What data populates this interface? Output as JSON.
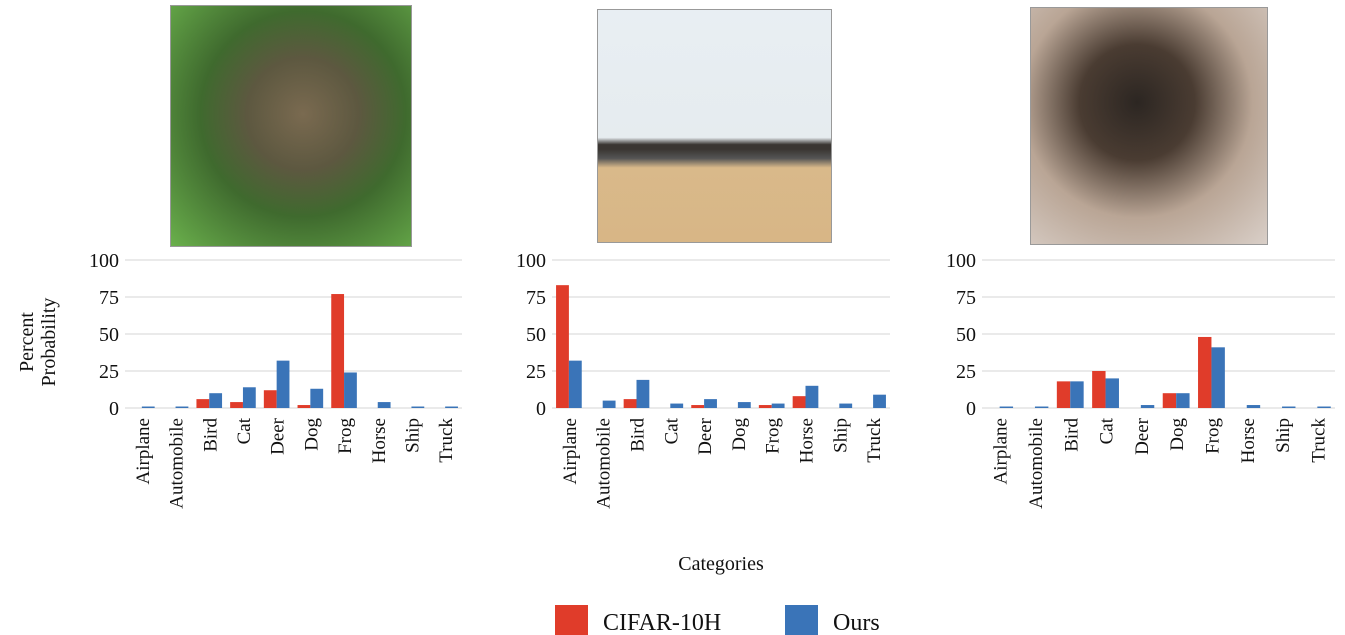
{
  "chart_data": [
    {
      "type": "bar",
      "ylabel": "Percent Probability",
      "categories": [
        "Airplane",
        "Automobile",
        "Bird",
        "Cat",
        "Deer",
        "Dog",
        "Frog",
        "Horse",
        "Ship",
        "Truck"
      ],
      "series": [
        {
          "name": "CIFAR-10H",
          "color": "#e03c2a",
          "values": [
            0,
            0,
            6,
            4,
            12,
            2,
            77,
            0,
            0,
            0
          ]
        },
        {
          "name": "Ours",
          "color": "#3a74b8",
          "values": [
            1,
            1,
            10,
            14,
            32,
            13,
            24,
            4,
            1,
            1
          ]
        }
      ],
      "ylim": [
        0,
        100
      ],
      "yticks": [
        0,
        25,
        50,
        75,
        100
      ],
      "grid": true
    },
    {
      "type": "bar",
      "xlabel": "Categories",
      "categories": [
        "Airplane",
        "Automobile",
        "Bird",
        "Cat",
        "Deer",
        "Dog",
        "Frog",
        "Horse",
        "Ship",
        "Truck"
      ],
      "series": [
        {
          "name": "CIFAR-10H",
          "color": "#e03c2a",
          "values": [
            83,
            0,
            6,
            0,
            2,
            0,
            2,
            8,
            0,
            0
          ]
        },
        {
          "name": "Ours",
          "color": "#3a74b8",
          "values": [
            32,
            5,
            19,
            3,
            6,
            4,
            3,
            15,
            3,
            9
          ]
        }
      ],
      "ylim": [
        0,
        100
      ],
      "yticks": [
        0,
        25,
        50,
        75,
        100
      ],
      "grid": true
    },
    {
      "type": "bar",
      "categories": [
        "Airplane",
        "Automobile",
        "Bird",
        "Cat",
        "Deer",
        "Dog",
        "Frog",
        "Horse",
        "Ship",
        "Truck"
      ],
      "series": [
        {
          "name": "CIFAR-10H",
          "color": "#e03c2a",
          "values": [
            0,
            0,
            18,
            25,
            0,
            10,
            48,
            0,
            0,
            0
          ]
        },
        {
          "name": "Ours",
          "color": "#3a74b8",
          "values": [
            1,
            1,
            18,
            20,
            2,
            10,
            41,
            2,
            1,
            1
          ]
        }
      ],
      "ylim": [
        0,
        100
      ],
      "yticks": [
        0,
        25,
        50,
        75,
        100
      ],
      "grid": true
    }
  ]
}
